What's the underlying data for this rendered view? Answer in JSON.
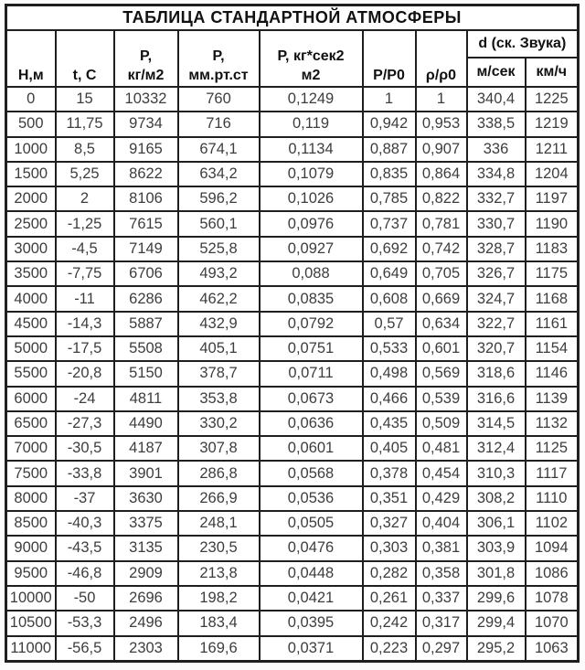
{
  "title": "ТАБЛИЦА СТАНДАРТНОЙ АТМОСФЕРЫ",
  "table": {
    "header": {
      "col_height": "Н,м",
      "col_temp": "t, C",
      "col_p_kg": [
        "P,",
        "кг/м2"
      ],
      "col_p_mm": [
        "P,",
        "мм.рт.ст"
      ],
      "col_p_kgsec": [
        "P, кг*сек2",
        "м2"
      ],
      "col_p_ratio": "P/P0",
      "col_rho_ratio": "ρ/ρ0",
      "col_sound": "d (ск. Звука)",
      "col_sound_ms": "м/сек",
      "col_sound_kmh": "км/ч"
    },
    "rows": [
      [
        "0",
        "15",
        "10332",
        "760",
        "0,1249",
        "1",
        "1",
        "340,4",
        "1225"
      ],
      [
        "500",
        "11,75",
        "9734",
        "716",
        "0,119",
        "0,942",
        "0,953",
        "338,5",
        "1219"
      ],
      [
        "1000",
        "8,5",
        "9165",
        "674,1",
        "0,1134",
        "0,887",
        "0,907",
        "336",
        "1211"
      ],
      [
        "1500",
        "5,25",
        "8622",
        "634,2",
        "0,1079",
        "0,835",
        "0,864",
        "334,8",
        "1204"
      ],
      [
        "2000",
        "2",
        "8106",
        "596,2",
        "0,1026",
        "0,785",
        "0,822",
        "332,7",
        "1197"
      ],
      [
        "2500",
        "-1,25",
        "7615",
        "560,1",
        "0,0976",
        "0,737",
        "0,781",
        "330,7",
        "1190"
      ],
      [
        "3000",
        "-4,5",
        "7149",
        "525,8",
        "0,0927",
        "0,692",
        "0,742",
        "328,7",
        "1183"
      ],
      [
        "3500",
        "-7,75",
        "6706",
        "493,2",
        "0,088",
        "0,649",
        "0,705",
        "326,7",
        "1175"
      ],
      [
        "4000",
        "-11",
        "6286",
        "462,2",
        "0,0835",
        "0,608",
        "0,669",
        "324,7",
        "1168"
      ],
      [
        "4500",
        "-14,3",
        "5887",
        "432,9",
        "0,0792",
        "0,57",
        "0,634",
        "322,7",
        "1161"
      ],
      [
        "5000",
        "-17,5",
        "5508",
        "405,1",
        "0,0751",
        "0,533",
        "0,601",
        "320,7",
        "1154"
      ],
      [
        "5500",
        "-20,8",
        "5150",
        "378,7",
        "0,0711",
        "0,498",
        "0,569",
        "318,6",
        "1146"
      ],
      [
        "6000",
        "-24",
        "4811",
        "353,8",
        "0,0673",
        "0,466",
        "0,539",
        "316,6",
        "1139"
      ],
      [
        "6500",
        "-27,3",
        "4490",
        "330,2",
        "0,0636",
        "0,435",
        "0,509",
        "314,5",
        "1132"
      ],
      [
        "7000",
        "-30,5",
        "4187",
        "307,8",
        "0,0601",
        "0,405",
        "0,481",
        "312,4",
        "1125"
      ],
      [
        "7500",
        "-33,8",
        "3901",
        "286,8",
        "0,0568",
        "0,378",
        "0,454",
        "310,3",
        "1117"
      ],
      [
        "8000",
        "-37",
        "3630",
        "266,9",
        "0,0536",
        "0,351",
        "0,429",
        "308,2",
        "1110"
      ],
      [
        "8500",
        "-40,3",
        "3375",
        "248,1",
        "0,0505",
        "0,327",
        "0,404",
        "306,1",
        "1102"
      ],
      [
        "9000",
        "-43,5",
        "3135",
        "230,5",
        "0,0476",
        "0,303",
        "0,381",
        "303,9",
        "1094"
      ],
      [
        "9500",
        "-46,8",
        "2909",
        "213,8",
        "0,0448",
        "0,282",
        "0,358",
        "301,8",
        "1086"
      ],
      [
        "10000",
        "-50",
        "2696",
        "198,2",
        "0,0421",
        "0,261",
        "0,337",
        "299,6",
        "1078"
      ],
      [
        "10500",
        "-53,3",
        "2496",
        "183,4",
        "0,0395",
        "0,242",
        "0,317",
        "299,4",
        "1070"
      ],
      [
        "11000",
        "-56,5",
        "2303",
        "169,6",
        "0,0371",
        "0,223",
        "0,297",
        "295,2",
        "1063"
      ]
    ]
  }
}
